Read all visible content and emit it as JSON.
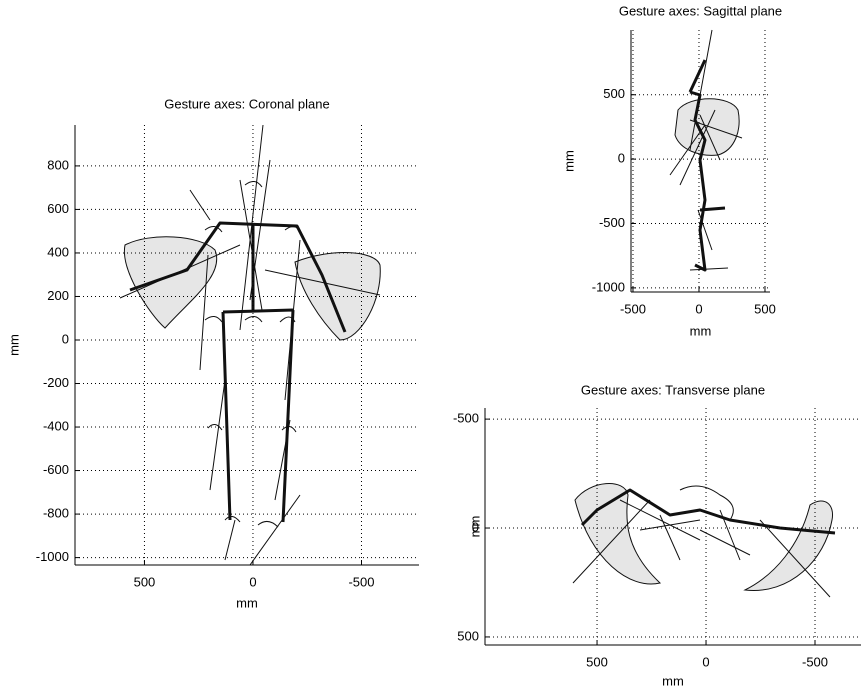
{
  "chart_data": [
    {
      "type": "line",
      "title": "Gesture axes: Coronal plane",
      "xlabel": "mm",
      "ylabel": "mm",
      "xlim": [
        820,
        -765
      ],
      "ylim": [
        -1034,
        988
      ],
      "xticks": [
        500,
        0,
        -500
      ],
      "yticks": [
        800,
        600,
        400,
        200,
        0,
        -200,
        -400,
        -600,
        -800,
        -1000
      ],
      "grid": true
    },
    {
      "type": "line",
      "title": "Gesture axes: Sagittal plane",
      "xlabel": "mm",
      "ylabel": "mm",
      "xlim": [
        -515,
        538
      ],
      "ylim": [
        -1032,
        1003
      ],
      "xticks": [
        -500,
        0,
        500
      ],
      "yticks": [
        500,
        0,
        -500,
        -1000
      ],
      "grid": true
    },
    {
      "type": "line",
      "title": "Gesture axes: Transverse plane",
      "xlabel": "mm",
      "ylabel": "mm",
      "xlim": [
        1014,
        -711
      ],
      "ylim": [
        537,
        -551
      ],
      "xticks": [
        500,
        0,
        -500
      ],
      "yticks": [
        -500,
        0,
        500
      ],
      "grid": true
    }
  ]
}
